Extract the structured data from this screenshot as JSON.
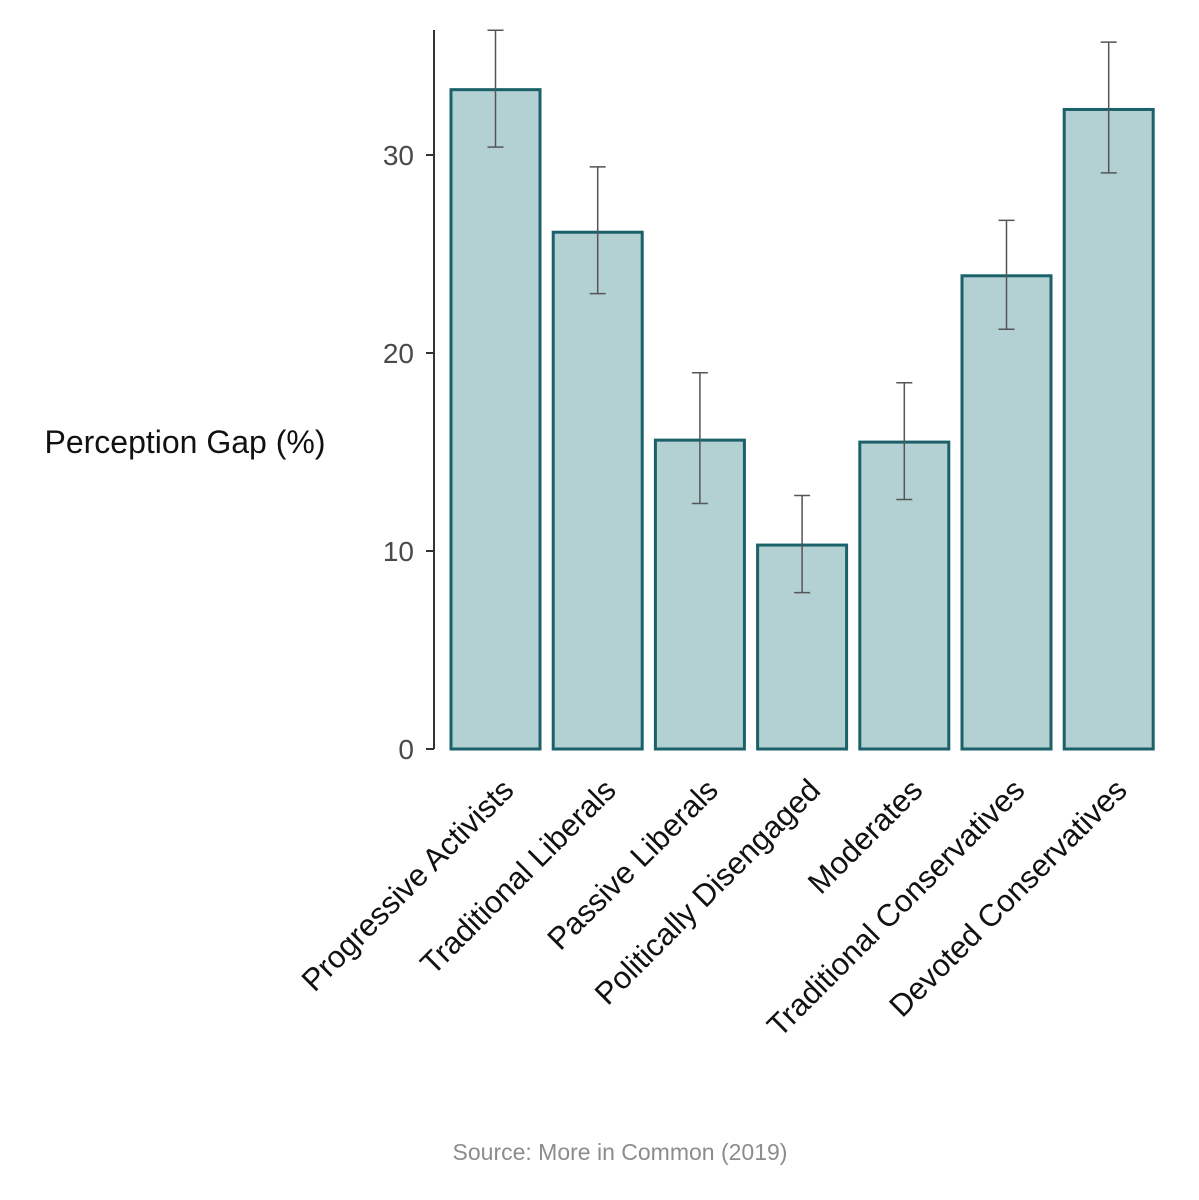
{
  "chart_data": {
    "type": "bar",
    "title": "",
    "xlabel": "",
    "ylabel": "Perception Gap (%)",
    "categories": [
      "Progressive Activists",
      "Traditional Liberals",
      "Passive Liberals",
      "Politically Disengaged",
      "Moderates",
      "Traditional Conservatives",
      "Devoted Conservatives"
    ],
    "values": [
      33.3,
      26.1,
      15.6,
      10.3,
      15.5,
      23.9,
      32.3
    ],
    "error_low": [
      30.4,
      23.0,
      12.4,
      7.9,
      12.6,
      21.2,
      29.1
    ],
    "error_high": [
      36.3,
      29.4,
      19.0,
      12.8,
      18.5,
      26.7,
      35.7
    ],
    "yticks": [
      0,
      10,
      20,
      30
    ],
    "ytick_labels": [
      "0",
      "10",
      "20",
      "30"
    ],
    "ylim": [
      0,
      36.4
    ],
    "grid": false,
    "colors": {
      "bar_fill": "#b3d0d3",
      "bar_stroke": "#1a6169",
      "error_bar": "#555555",
      "axis": "#333333"
    },
    "source": "Source: More in Common (2019)"
  }
}
